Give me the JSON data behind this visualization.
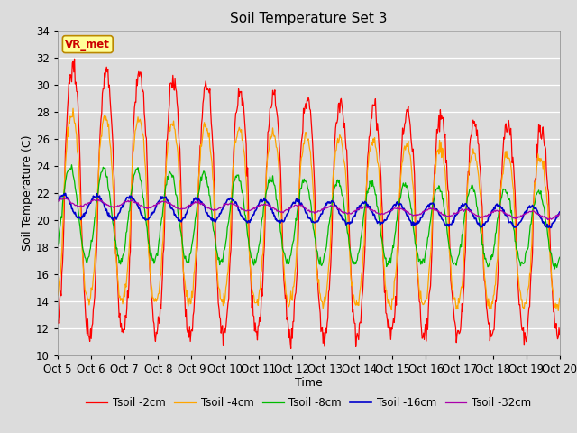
{
  "title": "Soil Temperature Set 3",
  "xlabel": "Time",
  "ylabel": "Soil Temperature (C)",
  "ylim": [
    10,
    34
  ],
  "yticks": [
    10,
    12,
    14,
    16,
    18,
    20,
    22,
    24,
    26,
    28,
    30,
    32,
    34
  ],
  "xtick_labels": [
    "Oct 5",
    "Oct 6",
    "Oct 7",
    "Oct 8",
    "Oct 9",
    "Oct 10",
    "Oct 11",
    "Oct 12",
    "Oct 13",
    "Oct 14",
    "Oct 15",
    "Oct 16",
    "Oct 17",
    "Oct 18",
    "Oct 19",
    "Oct 20"
  ],
  "colors": {
    "Tsoil -2cm": "#FF0000",
    "Tsoil -4cm": "#FFA500",
    "Tsoil -8cm": "#00BB00",
    "Tsoil -16cm": "#0000CC",
    "Tsoil -32cm": "#AA00AA"
  },
  "annotation_text": "VR_met",
  "annotation_color": "#CC0000",
  "annotation_bg": "#FFFF99",
  "fig_bg": "#DCDCDC",
  "plot_bg": "#DCDCDC",
  "title_fontsize": 11,
  "label_fontsize": 9,
  "tick_fontsize": 8.5
}
